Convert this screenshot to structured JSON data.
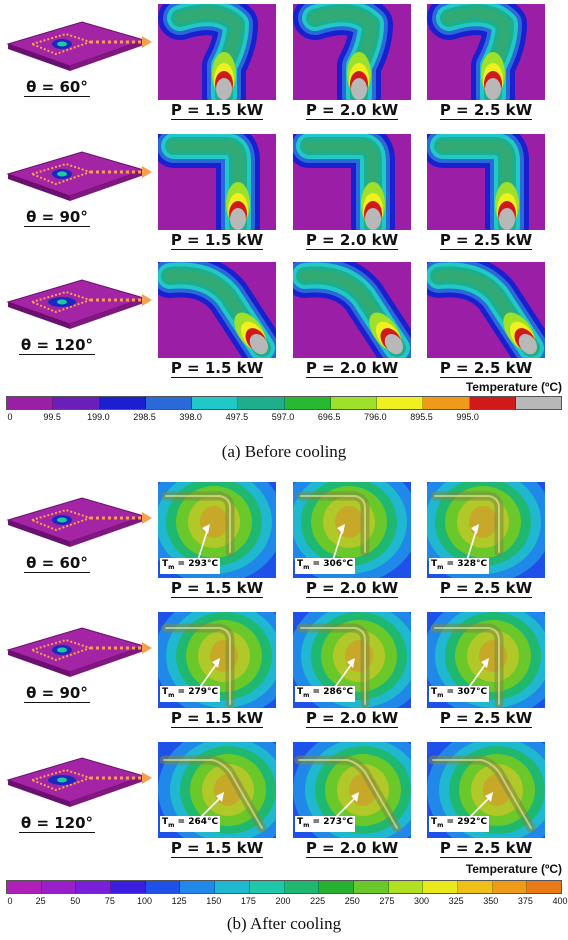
{
  "section_a": {
    "caption": "(a) Before cooling",
    "rows": [
      {
        "theta": "θ = 60°",
        "powers": [
          "P = 1.5 kW",
          "P = 2.0 kW",
          "P = 2.5 kW"
        ]
      },
      {
        "theta": "θ = 90°",
        "powers": [
          "P = 1.5 kW",
          "P = 2.0 kW",
          "P = 2.5 kW"
        ]
      },
      {
        "theta": "θ = 120°",
        "powers": [
          "P = 1.5 kW",
          "P = 2.0 kW",
          "P = 2.5 kW"
        ]
      }
    ],
    "legend_title": "Temperature (ºC)",
    "ticks": [
      "0",
      "99.5",
      "199.0",
      "298.5",
      "398.0",
      "497.5",
      "597.0",
      "696.5",
      "796.0",
      "895.5",
      "995.0"
    ],
    "colors": [
      "#9b1fa6",
      "#6a1fb8",
      "#1a1fd0",
      "#2a6ad8",
      "#20c8c8",
      "#1fae8c",
      "#28b832",
      "#9ee02a",
      "#f0f020",
      "#f09a1a",
      "#d01a1a",
      "#b8b8b8"
    ]
  },
  "section_b": {
    "caption": "(b) After cooling",
    "rows": [
      {
        "theta": "θ = 60°",
        "powers": [
          "P = 1.5 kW",
          "P = 2.0 kW",
          "P = 2.5 kW"
        ],
        "tm": [
          "293",
          "306",
          "328"
        ]
      },
      {
        "theta": "θ = 90°",
        "powers": [
          "P = 1.5 kW",
          "P = 2.0 kW",
          "P = 2.5 kW"
        ],
        "tm": [
          "279",
          "286",
          "307"
        ]
      },
      {
        "theta": "θ = 120°",
        "powers": [
          "P = 1.5 kW",
          "P = 2.0 kW",
          "P = 2.5 kW"
        ],
        "tm": [
          "264",
          "273",
          "292"
        ]
      }
    ],
    "tm_label": "T",
    "tm_sub": "m",
    "tm_unit": "°C",
    "legend_title": "Temperature (ºC)",
    "ticks": [
      "0",
      "25",
      "50",
      "75",
      "100",
      "125",
      "150",
      "175",
      "200",
      "225",
      "250",
      "275",
      "300",
      "325",
      "350",
      "375",
      "400"
    ],
    "colors": [
      "#b01fb8",
      "#9a1fc8",
      "#7a1fd8",
      "#3a1fe0",
      "#1f50e8",
      "#1f88e8",
      "#1fb8d0",
      "#1fc8a8",
      "#1fb870",
      "#28b030",
      "#6ac82a",
      "#b0e020",
      "#e8e81a",
      "#f0c01a",
      "#f09a1a",
      "#e87a1a"
    ]
  }
}
